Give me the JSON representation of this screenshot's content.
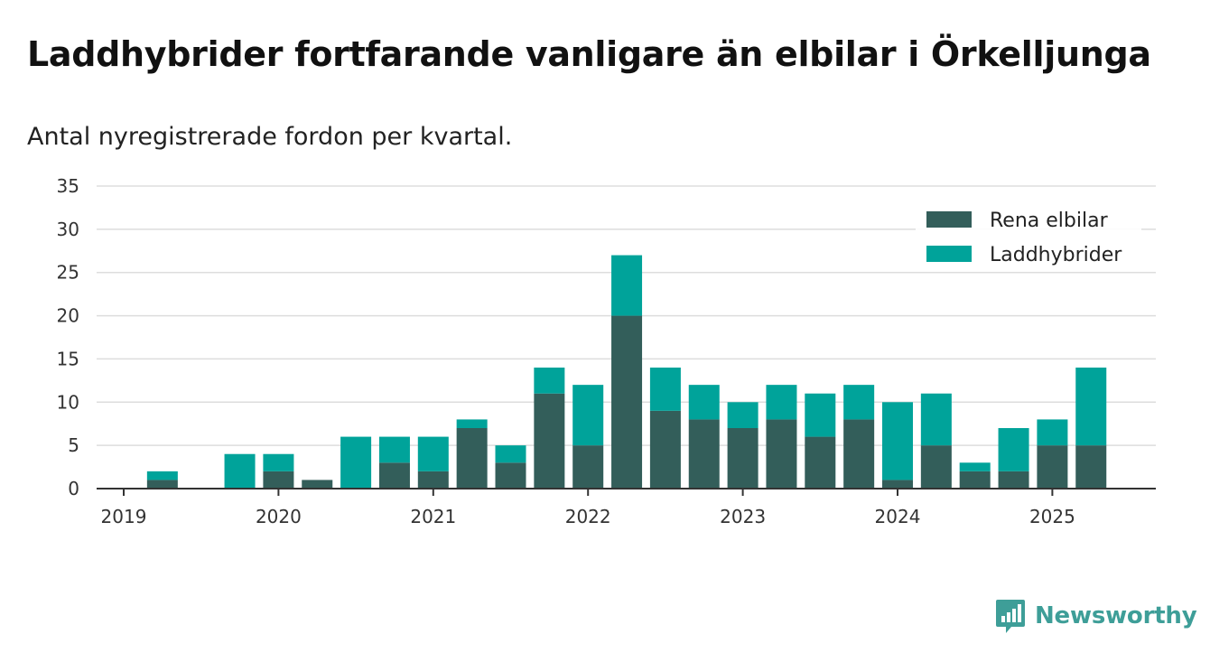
{
  "title": "Laddhybrider fortfarande vanligare än elbilar i Örkelljunga",
  "subtitle": "Antal nyregistrerade fordon per kvartal.",
  "brand": {
    "name": "Newsworthy",
    "color": "#3e9e98"
  },
  "colors": {
    "elbilar": "#335e5a",
    "laddhybrider": "#00a39a",
    "grid": "#dddddd",
    "axis": "#333333"
  },
  "chart_data": {
    "type": "bar",
    "stacked": true,
    "x": [
      "2019-Q1",
      "2019-Q2",
      "2019-Q3",
      "2019-Q4",
      "2020-Q1",
      "2020-Q2",
      "2020-Q3",
      "2020-Q4",
      "2021-Q1",
      "2021-Q2",
      "2021-Q3",
      "2021-Q4",
      "2022-Q1",
      "2022-Q2",
      "2022-Q3",
      "2022-Q4",
      "2023-Q1",
      "2023-Q2",
      "2023-Q3",
      "2023-Q4",
      "2024-Q1",
      "2024-Q2",
      "2024-Q3",
      "2024-Q4",
      "2025-Q1",
      "2025-Q2"
    ],
    "xticks": [
      "2019",
      "2020",
      "2021",
      "2022",
      "2023",
      "2024",
      "2025"
    ],
    "series": [
      {
        "name": "Rena elbilar",
        "values": [
          0,
          1,
          0,
          0,
          2,
          1,
          0,
          3,
          2,
          7,
          3,
          11,
          5,
          20,
          9,
          8,
          7,
          8,
          6,
          8,
          1,
          5,
          2,
          2,
          5,
          5
        ]
      },
      {
        "name": "Laddhybrider",
        "values": [
          0,
          1,
          0,
          4,
          2,
          0,
          6,
          3,
          4,
          1,
          2,
          3,
          7,
          7,
          5,
          4,
          3,
          4,
          5,
          4,
          9,
          6,
          1,
          5,
          3,
          9
        ]
      }
    ],
    "yticks": [
      0,
      5,
      10,
      15,
      20,
      25,
      30,
      35
    ],
    "ylim": [
      0,
      35
    ],
    "grid": true,
    "legend": "top-right"
  }
}
